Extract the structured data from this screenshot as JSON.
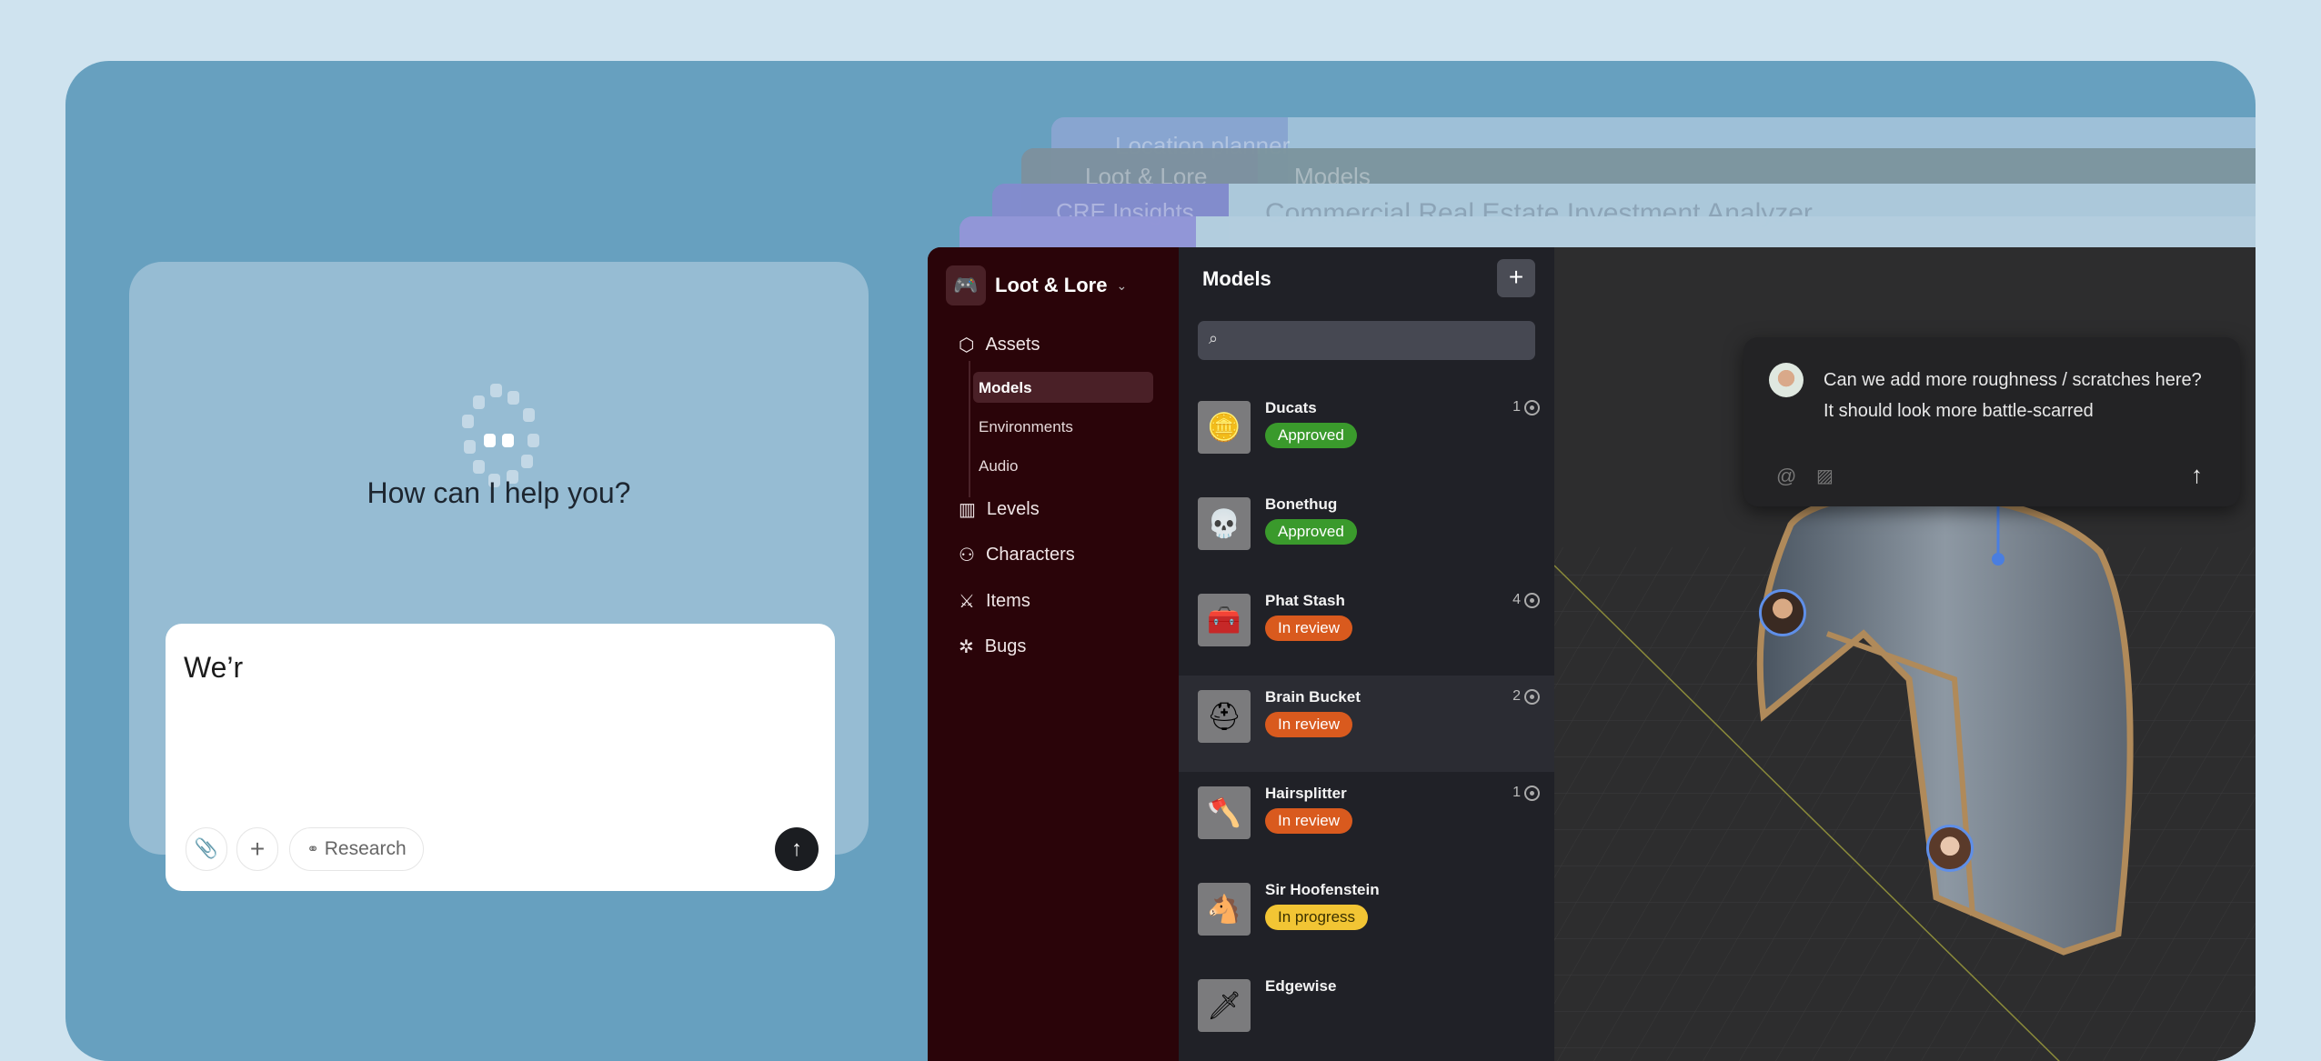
{
  "assistant": {
    "heading": "How can I help you?",
    "input_value": "We’r",
    "buttons": {
      "attach": "paperclip-icon",
      "add": "+",
      "research": "Research",
      "send": "↑"
    }
  },
  "background_windows": [
    {
      "sidebar": "Location planner",
      "main": ""
    },
    {
      "sidebar": "Loot & Lore",
      "main": "Models"
    },
    {
      "sidebar": "CRE Insights",
      "main": "Commercial Real Estate Investment Analyzer"
    },
    {
      "sidebar": "Location planner",
      "main": ""
    }
  ],
  "app": {
    "workspace": "Loot & Lore",
    "nav": [
      {
        "label": "Assets",
        "icon": "cube-icon"
      },
      {
        "label": "Levels",
        "icon": "map-icon"
      },
      {
        "label": "Characters",
        "icon": "users-icon"
      },
      {
        "label": "Items",
        "icon": "sword-icon"
      },
      {
        "label": "Bugs",
        "icon": "bug-icon"
      }
    ],
    "asset_sub": [
      {
        "label": "Models",
        "active": true
      },
      {
        "label": "Environments"
      },
      {
        "label": "Audio"
      }
    ],
    "list_title": "Models",
    "models": [
      {
        "name": "Ducats",
        "status": "Approved",
        "comments": "1"
      },
      {
        "name": "Bonethug",
        "status": "Approved",
        "comments": ""
      },
      {
        "name": "Phat Stash",
        "status": "In review",
        "comments": "4"
      },
      {
        "name": "Brain Bucket",
        "status": "In review",
        "comments": "2"
      },
      {
        "name": "Hairsplitter",
        "status": "In review",
        "comments": "1"
      },
      {
        "name": "Sir Hoofenstein",
        "status": "In progress",
        "comments": ""
      },
      {
        "name": "Edgewise",
        "status": "",
        "comments": ""
      }
    ],
    "status_colors": {
      "Approved": "#3a9a2c",
      "In review": "#d95a1e",
      "In progress": "#f2c534"
    },
    "comment": {
      "text": "Can we add more roughness / scratches here? It should look more battle-scarred"
    }
  }
}
